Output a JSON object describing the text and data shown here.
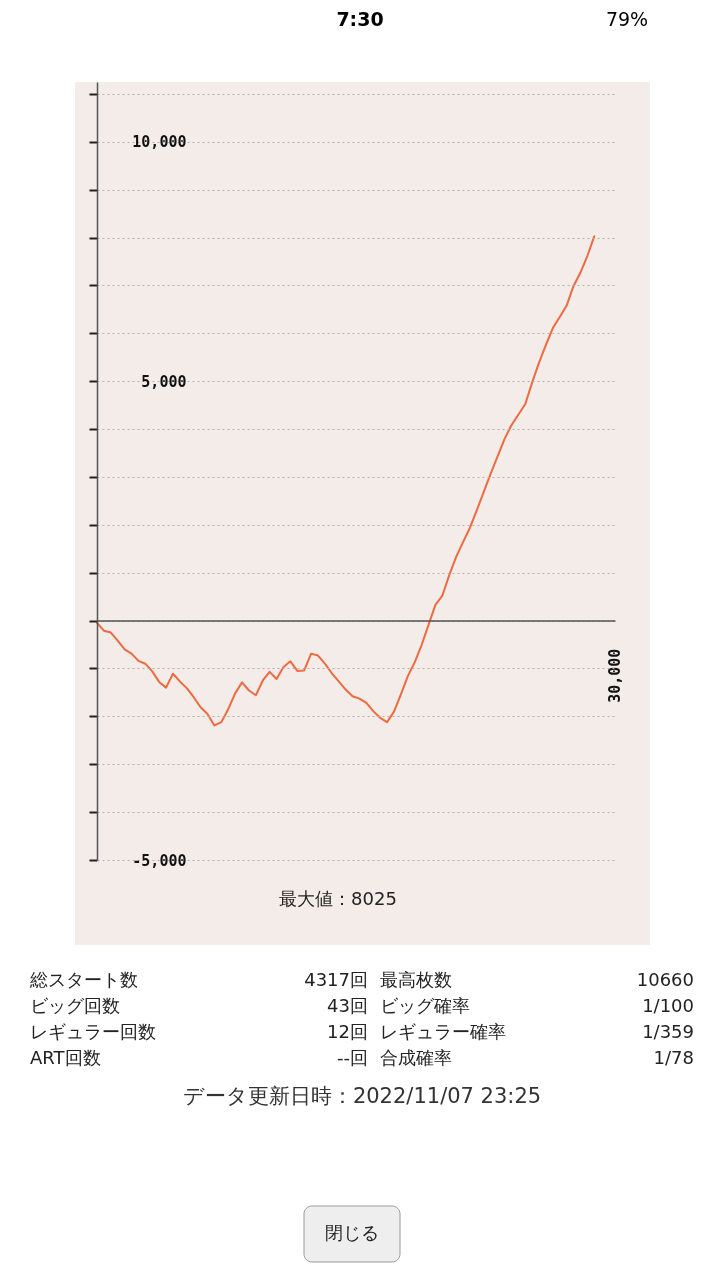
{
  "chart_data": {
    "type": "line",
    "categories": [
      null,
      null,
      null,
      null,
      null,
      null,
      null,
      null,
      null,
      null,
      null,
      null,
      null,
      null,
      null,
      null,
      null,
      null,
      null,
      null,
      null,
      null,
      null,
      null,
      null,
      null,
      null,
      null,
      null,
      null,
      null,
      null,
      null,
      null,
      null,
      null,
      null,
      null,
      null,
      null,
      null,
      null,
      null,
      null,
      null,
      null,
      null,
      null,
      null,
      null,
      null,
      null,
      null,
      null,
      null,
      null,
      null,
      null,
      null,
      null,
      null,
      null,
      null,
      null,
      null,
      null,
      null,
      null,
      null,
      null,
      null,
      null,
      null,
      null,
      null,
      null
    ],
    "ylim": [
      -5000,
      11250
    ],
    "yticks": [
      {
        "value": -5000,
        "label": "-5,000"
      },
      {
        "value": -4000,
        "label": null
      },
      {
        "value": -3000,
        "label": null
      },
      {
        "value": -2000,
        "label": null
      },
      {
        "value": -1000,
        "label": null
      },
      {
        "value": 0,
        "label": null
      },
      {
        "value": 1000,
        "label": null
      },
      {
        "value": 2000,
        "label": null
      },
      {
        "value": 3000,
        "label": null
      },
      {
        "value": 4000,
        "label": null
      },
      {
        "value": 5000,
        "label": "5,000"
      },
      {
        "value": 6000,
        "label": null
      },
      {
        "value": 7000,
        "label": null
      },
      {
        "value": 8000,
        "label": null
      },
      {
        "value": 9000,
        "label": null
      },
      {
        "value": 10000,
        "label": "10,000"
      },
      {
        "value": 11000,
        "label": null
      }
    ],
    "grid": "y",
    "marker": "none",
    "line_style": "solid",
    "series": [
      {
        "color": "#ee6a40",
        "values": [
          -50,
          -210,
          -250,
          -420,
          -600,
          -690,
          -840,
          -900,
          -1060,
          -1280,
          -1400,
          -1110,
          -1270,
          -1410,
          -1600,
          -1810,
          -1950,
          -2190,
          -2120,
          -1850,
          -1520,
          -1290,
          -1460,
          -1560,
          -1250,
          -1070,
          -1220,
          -970,
          -850,
          -1050,
          -1040,
          -690,
          -730,
          -900,
          -1100,
          -1270,
          -1440,
          -1580,
          -1630,
          -1720,
          -1890,
          -2030,
          -2120,
          -1900,
          -1540,
          -1160,
          -870,
          -510,
          -90,
          330,
          520,
          950,
          1330,
          1640,
          1940,
          2310,
          2690,
          3070,
          3430,
          3790,
          4080,
          4300,
          4520,
          4970,
          5390,
          5760,
          6110,
          6340,
          6580,
          6990,
          7270,
          7620,
          8025,
          null,
          null,
          null
        ]
      }
    ],
    "annotations": [
      "7:30",
      "79%",
      "30,000",
      "最大値：8025",
      "総スタート数",
      "4317回",
      "最高枚数",
      "10660",
      "ビッグ回数",
      "43回",
      "ビッグ確率",
      "1/100",
      "レギュラー回数",
      "12回",
      "レギュラー確率",
      "1/359",
      "ART回数",
      "--回",
      "合成確率",
      "1/78",
      "データ更新日時：2022/11/07 23:25",
      "閉じる"
    ]
  }
}
